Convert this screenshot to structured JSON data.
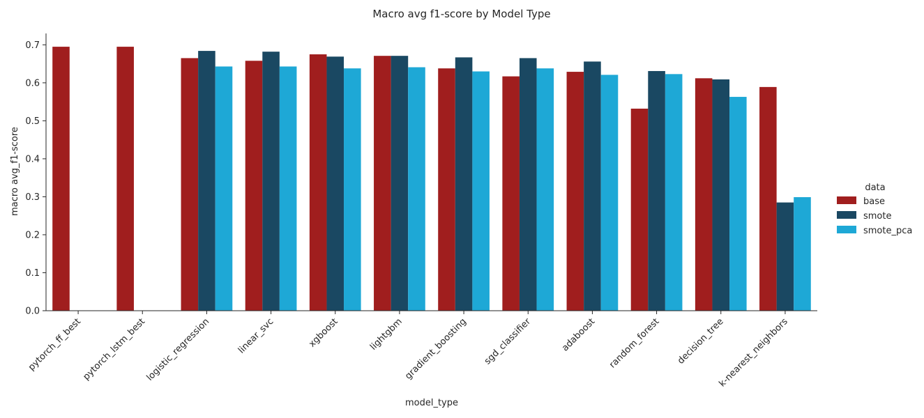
{
  "chart_data": {
    "type": "bar",
    "title": "Macro avg f1-score by Model Type",
    "xlabel": "model_type",
    "ylabel": "macro avg_f1-score",
    "ylim": [
      0,
      0.73
    ],
    "yticks": [
      "0.0",
      "0.1",
      "0.2",
      "0.3",
      "0.4",
      "0.5",
      "0.6",
      "0.7"
    ],
    "grid": false,
    "legend_title": "data",
    "legend_position": "right",
    "categories": [
      "pytorch_ff_best",
      "pytorch_lstm_best",
      "logistic_regression",
      "linear_svc",
      "xgboost",
      "lightgbm",
      "gradient_boosting",
      "sgd_classifier",
      "adaboost",
      "random_forest",
      "decision_tree",
      "k-nearest_neighbors"
    ],
    "series": [
      {
        "name": "base",
        "color": "#a01e1e",
        "values": [
          0.695,
          0.695,
          0.665,
          0.658,
          0.675,
          0.671,
          0.638,
          0.617,
          0.629,
          0.532,
          0.612,
          0.589
        ]
      },
      {
        "name": "smote",
        "color": "#1a4862",
        "values": [
          null,
          null,
          0.684,
          0.682,
          0.669,
          0.671,
          0.667,
          0.665,
          0.656,
          0.631,
          0.609,
          0.285
        ]
      },
      {
        "name": "smote_pca",
        "color": "#1ea8d6",
        "values": [
          null,
          null,
          0.643,
          0.643,
          0.638,
          0.641,
          0.63,
          0.638,
          0.621,
          0.623,
          0.563,
          0.299
        ]
      }
    ]
  }
}
